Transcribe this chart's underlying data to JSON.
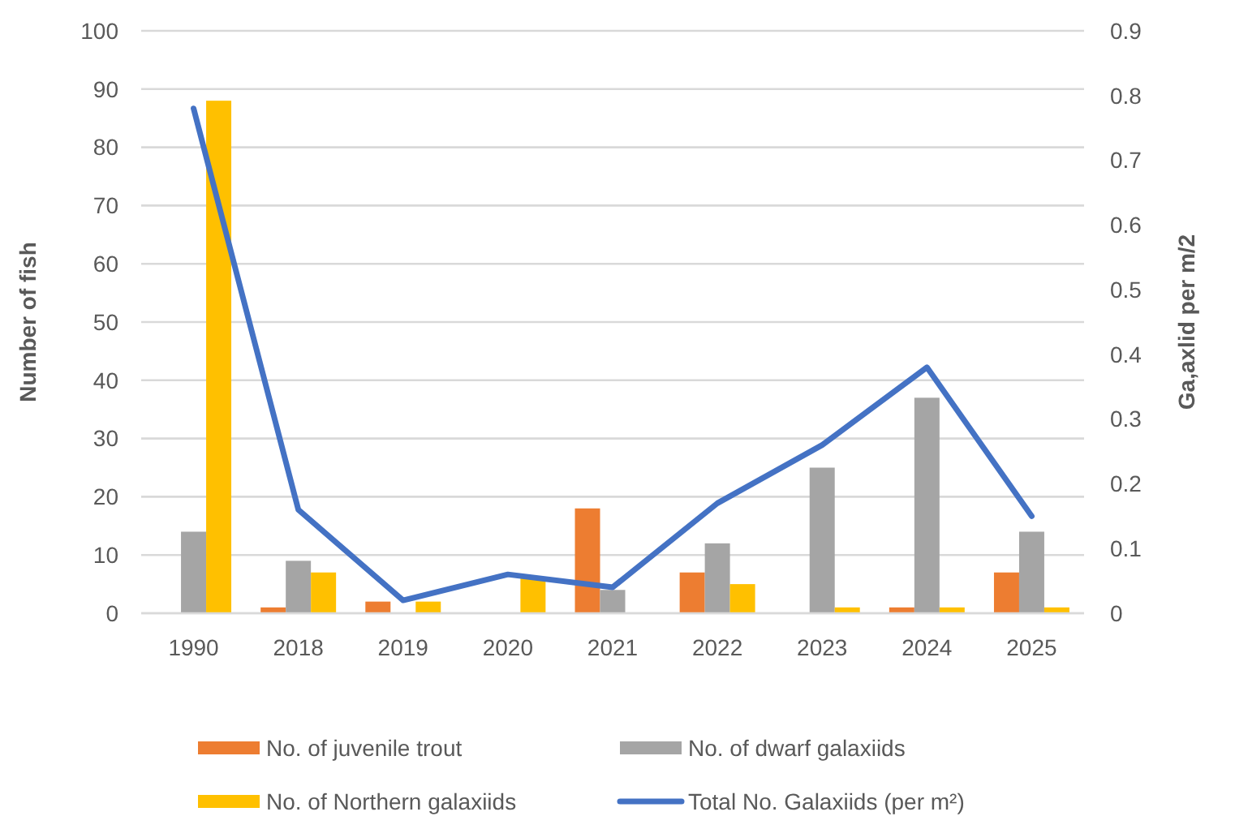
{
  "chart_data": {
    "type": "bar",
    "categories": [
      "1990",
      "2018",
      "2019",
      "2020",
      "2021",
      "2022",
      "2023",
      "2024",
      "2025"
    ],
    "series": [
      {
        "name": "No. of juvenile trout",
        "color": "#ed7d31",
        "values": [
          0,
          1,
          2,
          0,
          18,
          7,
          0,
          1,
          7
        ]
      },
      {
        "name": "No. of dwarf galaxiids",
        "color": "#a5a5a5",
        "values": [
          14,
          9,
          0,
          0,
          4,
          12,
          25,
          37,
          14
        ]
      },
      {
        "name": "No. of Northern galaxiids",
        "color": "#ffc000",
        "values": [
          88,
          7,
          2,
          6,
          0,
          5,
          1,
          1,
          1
        ]
      },
      {
        "name": "Total No. Galaxiids (per m²)",
        "type": "line",
        "axis": "y2",
        "color": "#4472c4",
        "values": [
          0.78,
          0.16,
          0.02,
          0.06,
          0.04,
          0.17,
          0.26,
          0.38,
          0.15
        ]
      }
    ],
    "ylabel": "Number of fish",
    "y2label": "Ga,axlid per m/2",
    "ylim": [
      0,
      100
    ],
    "yticks": [
      0,
      10,
      20,
      30,
      40,
      50,
      60,
      70,
      80,
      90,
      100
    ],
    "y2lim": [
      0,
      0.9
    ],
    "y2ticks": [
      0,
      0.1,
      0.2,
      0.3,
      0.4,
      0.5,
      0.6,
      0.7,
      0.8,
      0.9
    ],
    "grid": "y",
    "legend": "bottom"
  }
}
